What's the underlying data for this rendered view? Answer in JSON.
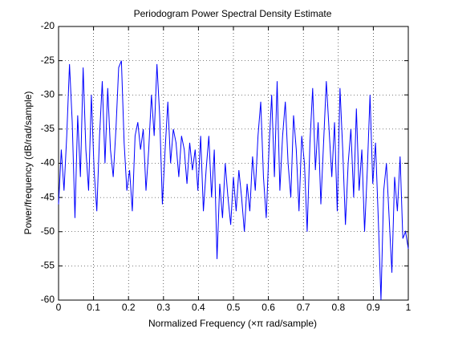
{
  "chart_data": {
    "type": "line",
    "title": "Periodogram Power Spectral Density Estimate",
    "x_label": "Normalized Frequency  (×π rad/sample)",
    "y_label": "Power/frequency (dB/rad/sample)",
    "color": "#0000ff",
    "grid": true,
    "xlim": [
      0,
      1
    ],
    "ylim": [
      -60,
      -20
    ],
    "xticks": [
      0,
      0.1,
      0.2,
      0.3,
      0.4,
      0.5,
      0.6,
      0.7,
      0.8,
      0.9,
      1
    ],
    "yticks": [
      -60,
      -55,
      -50,
      -45,
      -40,
      -35,
      -30,
      -25,
      -20
    ],
    "x": [
      0,
      0.0078,
      0.0156,
      0.0234,
      0.0313,
      0.0391,
      0.0469,
      0.0547,
      0.0625,
      0.0703,
      0.0781,
      0.0859,
      0.0938,
      0.1016,
      0.1094,
      0.1172,
      0.125,
      0.1328,
      0.1406,
      0.1484,
      0.1563,
      0.1641,
      0.1719,
      0.1797,
      0.1875,
      0.1953,
      0.2031,
      0.2109,
      0.2188,
      0.2266,
      0.2344,
      0.2422,
      0.25,
      0.2578,
      0.2656,
      0.2734,
      0.2813,
      0.2891,
      0.2969,
      0.3047,
      0.3125,
      0.3203,
      0.3281,
      0.3359,
      0.3438,
      0.3516,
      0.3594,
      0.3672,
      0.375,
      0.3828,
      0.3906,
      0.3984,
      0.4063,
      0.4141,
      0.4219,
      0.4297,
      0.4375,
      0.4453,
      0.4531,
      0.4609,
      0.4688,
      0.4766,
      0.4844,
      0.4922,
      0.5,
      0.5078,
      0.5156,
      0.5234,
      0.5313,
      0.5391,
      0.5469,
      0.5547,
      0.5625,
      0.5703,
      0.5781,
      0.5859,
      0.5938,
      0.6016,
      0.6094,
      0.6172,
      0.625,
      0.6328,
      0.6406,
      0.6484,
      0.6563,
      0.6641,
      0.6719,
      0.6797,
      0.6875,
      0.6953,
      0.7031,
      0.7109,
      0.7188,
      0.7266,
      0.7344,
      0.7422,
      0.75,
      0.7578,
      0.7656,
      0.7734,
      0.7813,
      0.7891,
      0.7969,
      0.8047,
      0.8125,
      0.8203,
      0.8281,
      0.8359,
      0.8438,
      0.8516,
      0.8594,
      0.8672,
      0.875,
      0.8828,
      0.8906,
      0.8984,
      0.9063,
      0.9141,
      0.9219,
      0.9297,
      0.9375,
      0.9453,
      0.9531,
      0.9609,
      0.9688,
      0.9766,
      0.9844,
      0.9922,
      1
    ],
    "values": [
      -46,
      -38,
      -44,
      -36,
      -25.5,
      -34,
      -48,
      -33,
      -42,
      -26,
      -38,
      -44,
      -30,
      -41,
      -47,
      -36,
      -28,
      -40,
      -29,
      -38,
      -42,
      -35,
      -26,
      -25,
      -37,
      -44,
      -41,
      -47,
      -36,
      -34,
      -38,
      -35,
      -44,
      -38,
      -30,
      -36,
      -25.5,
      -33,
      -46,
      -38,
      -31,
      -40,
      -35,
      -37,
      -42,
      -36,
      -38,
      -43,
      -37,
      -41,
      -38,
      -44,
      -36,
      -47,
      -41,
      -36,
      -45,
      -38,
      -54,
      -43,
      -48,
      -40,
      -45,
      -49,
      -42,
      -47,
      -41,
      -45,
      -50,
      -43,
      -47,
      -39,
      -44,
      -36,
      -31,
      -42,
      -48,
      -38,
      -30,
      -42,
      -28,
      -44,
      -36,
      -31,
      -40,
      -45,
      -33,
      -38,
      -47,
      -36,
      -40,
      -50,
      -37,
      -29,
      -41,
      -34,
      -46,
      -37,
      -28,
      -35,
      -42,
      -34,
      -47,
      -29,
      -38,
      -49,
      -40,
      -35,
      -45,
      -32,
      -44,
      -38,
      -50,
      -41,
      -30,
      -43,
      -37,
      -48,
      -60,
      -44,
      -40,
      -48,
      -56,
      -42,
      -47,
      -39,
      -51,
      -50,
      -52.5
    ]
  }
}
